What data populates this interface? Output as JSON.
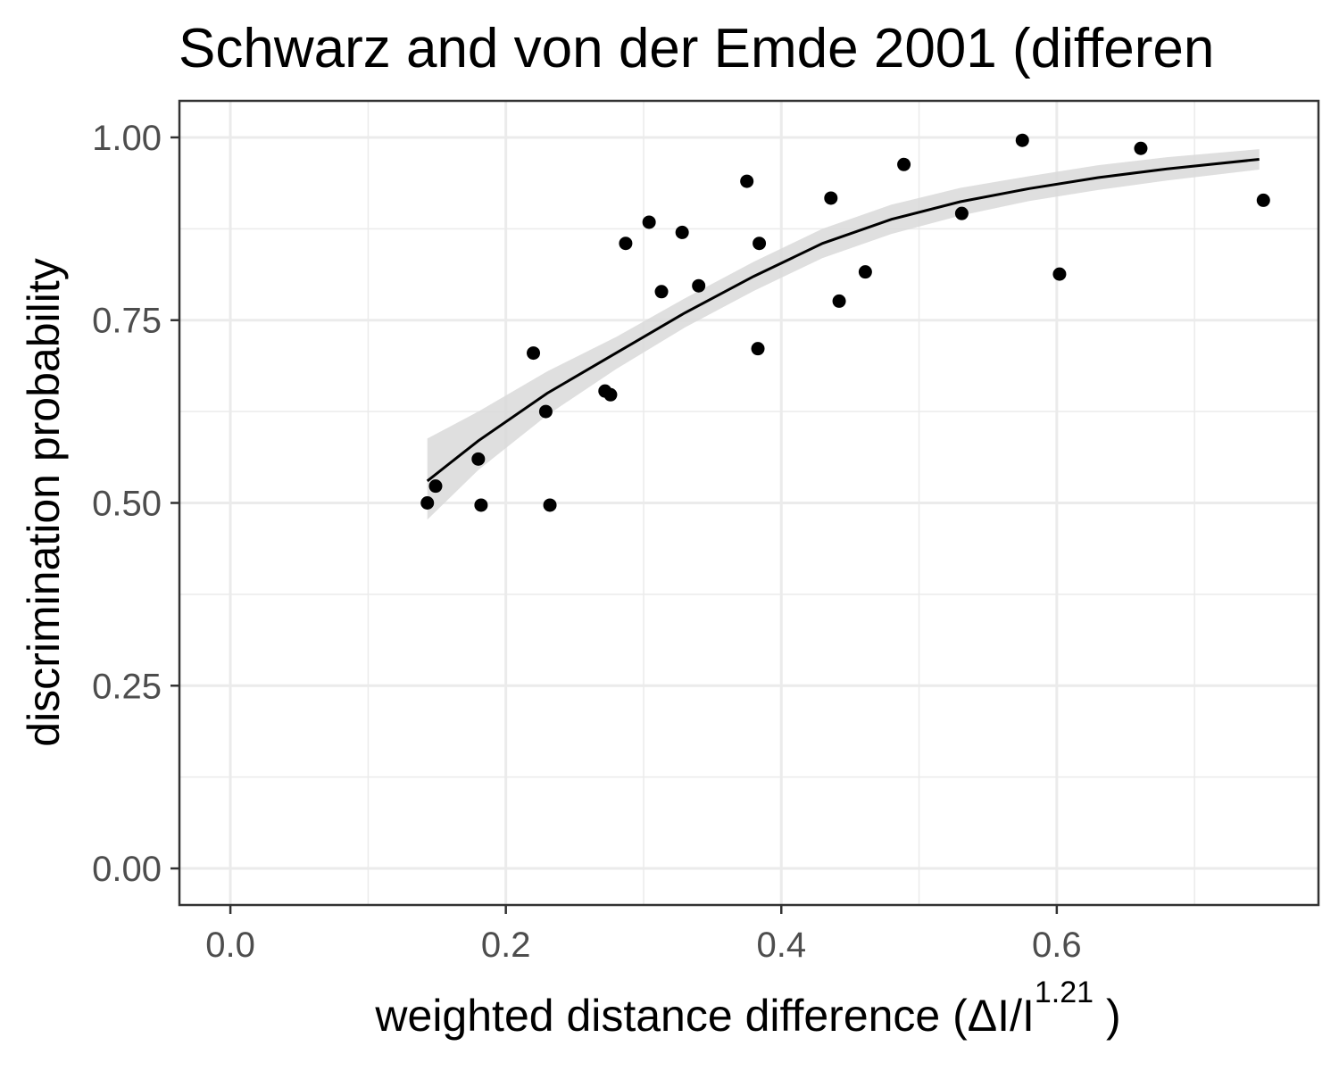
{
  "chart_data": {
    "type": "scatter",
    "title": "Schwarz and von der Emde 2001 (differen",
    "xlabel": {
      "main": "weighted  distance  difference (ΔI/I",
      "exponent": "1.21",
      "close": " )"
    },
    "ylabel": "discrimination probability",
    "xlim": [
      -0.037,
      0.79
    ],
    "ylim": [
      -0.05,
      1.05
    ],
    "x_ticks": [
      {
        "value": 0.0,
        "label": "0.0"
      },
      {
        "value": 0.2,
        "label": "0.2"
      },
      {
        "value": 0.4,
        "label": "0.4"
      },
      {
        "value": 0.6,
        "label": "0.6"
      }
    ],
    "y_ticks": [
      {
        "value": 0.0,
        "label": "0.00"
      },
      {
        "value": 0.25,
        "label": "0.25"
      },
      {
        "value": 0.5,
        "label": "0.50"
      },
      {
        "value": 0.75,
        "label": "0.75"
      },
      {
        "value": 1.0,
        "label": "1.00"
      }
    ],
    "grid": true,
    "legend": "none",
    "colors": {
      "points": "#000000",
      "fit_line": "#000000",
      "ribbon": "#d9d9d9",
      "grid": "#ebebeb",
      "panel_border": "#333333"
    },
    "points": [
      {
        "x": 0.143,
        "y": 0.5
      },
      {
        "x": 0.149,
        "y": 0.523
      },
      {
        "x": 0.18,
        "y": 0.56
      },
      {
        "x": 0.182,
        "y": 0.497
      },
      {
        "x": 0.22,
        "y": 0.705
      },
      {
        "x": 0.229,
        "y": 0.625
      },
      {
        "x": 0.232,
        "y": 0.497
      },
      {
        "x": 0.272,
        "y": 0.653
      },
      {
        "x": 0.276,
        "y": 0.648
      },
      {
        "x": 0.287,
        "y": 0.855
      },
      {
        "x": 0.304,
        "y": 0.884
      },
      {
        "x": 0.313,
        "y": 0.789
      },
      {
        "x": 0.328,
        "y": 0.87
      },
      {
        "x": 0.34,
        "y": 0.797
      },
      {
        "x": 0.375,
        "y": 0.94
      },
      {
        "x": 0.383,
        "y": 0.711
      },
      {
        "x": 0.384,
        "y": 0.855
      },
      {
        "x": 0.436,
        "y": 0.917
      },
      {
        "x": 0.442,
        "y": 0.776
      },
      {
        "x": 0.461,
        "y": 0.816
      },
      {
        "x": 0.489,
        "y": 0.963
      },
      {
        "x": 0.531,
        "y": 0.896
      },
      {
        "x": 0.575,
        "y": 0.996
      },
      {
        "x": 0.602,
        "y": 0.813
      },
      {
        "x": 0.661,
        "y": 0.985
      },
      {
        "x": 0.75,
        "y": 0.914
      }
    ],
    "fit": {
      "x": [
        0.143,
        0.18,
        0.23,
        0.28,
        0.33,
        0.38,
        0.43,
        0.48,
        0.53,
        0.58,
        0.63,
        0.68,
        0.747
      ],
      "y": [
        0.53,
        0.585,
        0.65,
        0.705,
        0.76,
        0.81,
        0.855,
        0.888,
        0.912,
        0.93,
        0.945,
        0.957,
        0.97
      ],
      "lower": [
        0.477,
        0.545,
        0.62,
        0.683,
        0.74,
        0.79,
        0.835,
        0.868,
        0.893,
        0.913,
        0.928,
        0.941,
        0.956
      ],
      "upper": [
        0.588,
        0.625,
        0.68,
        0.727,
        0.78,
        0.83,
        0.875,
        0.908,
        0.931,
        0.947,
        0.962,
        0.973,
        0.984
      ]
    }
  }
}
